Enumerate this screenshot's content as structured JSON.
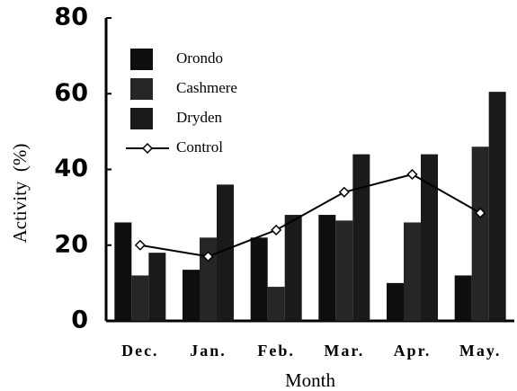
{
  "chart_data": {
    "type": "bar",
    "x_label": "Month",
    "y_label": "Activity  (%)",
    "categories": [
      "Dec.",
      "Jan.",
      "Feb.",
      "Mar.",
      "Apr.",
      "May."
    ],
    "series": [
      {
        "name": "Orondo",
        "color": "#0e0e0e",
        "values": [
          26,
          13.5,
          22,
          28,
          10,
          12
        ]
      },
      {
        "name": "Cashmere",
        "color": "#262626",
        "values": [
          12,
          22,
          9,
          26.5,
          26,
          46
        ]
      },
      {
        "name": "Dryden",
        "color": "#1a1a1a",
        "values": [
          18,
          36,
          28,
          44,
          44,
          60.5
        ]
      },
      {
        "name": "Control",
        "type": "line",
        "color": "#000000",
        "values": [
          20,
          17,
          24,
          34,
          38.7,
          28.5
        ]
      }
    ],
    "ylim": [
      0,
      80
    ],
    "yticks": [
      0,
      20,
      40,
      60,
      80
    ],
    "legend": "upper left"
  }
}
